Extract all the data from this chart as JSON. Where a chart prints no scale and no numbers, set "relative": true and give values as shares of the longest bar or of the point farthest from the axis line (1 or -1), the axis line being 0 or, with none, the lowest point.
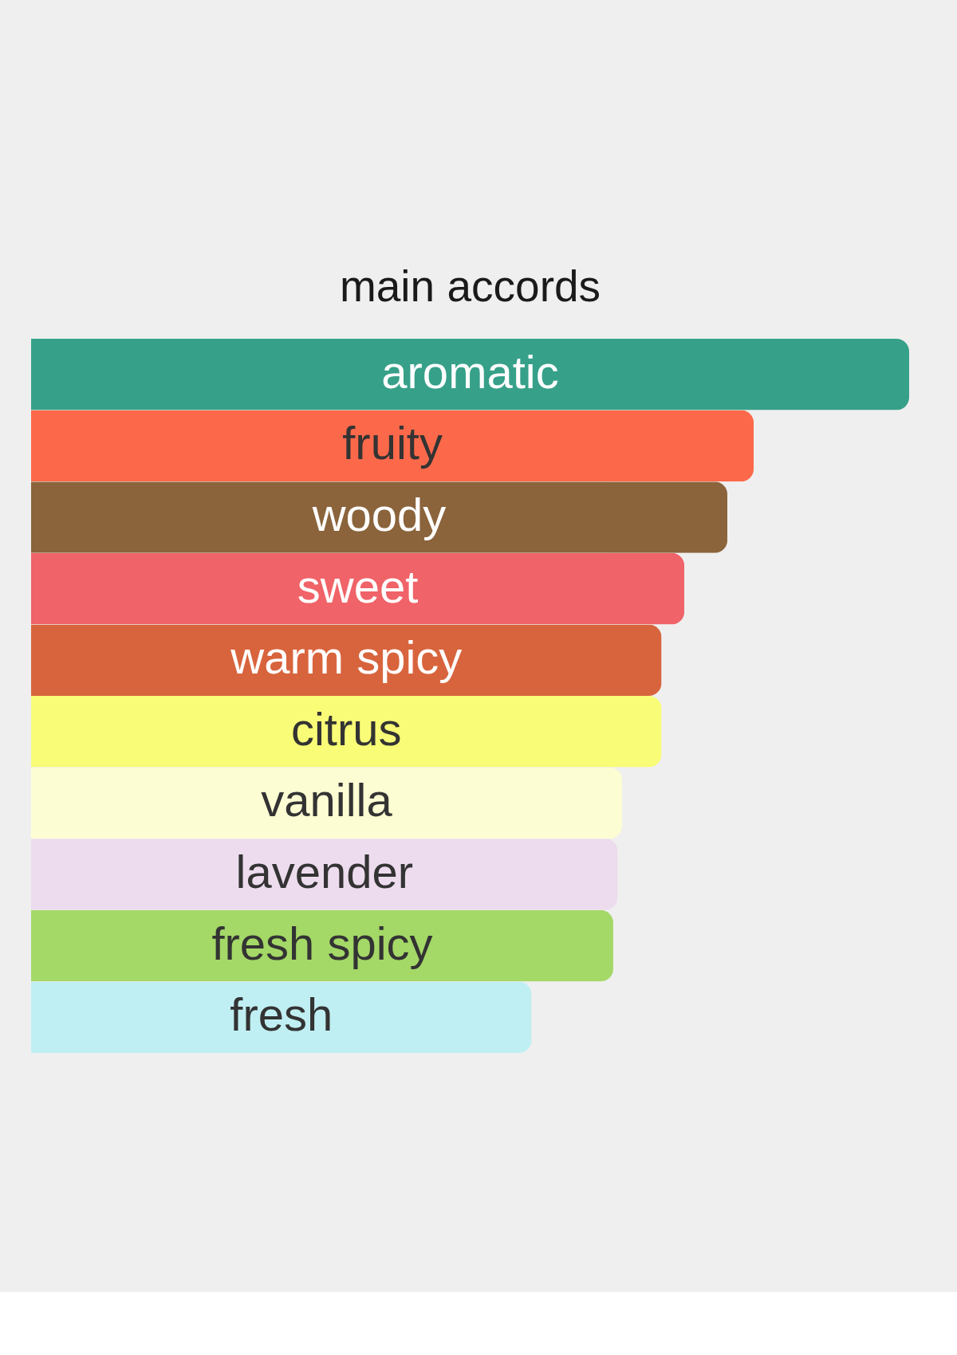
{
  "chart_data": {
    "type": "bar",
    "orientation": "horizontal",
    "relative": true,
    "title": "main accords",
    "categories": [
      "aromatic",
      "fruity",
      "woody",
      "sweet",
      "warm spicy",
      "citrus",
      "vanilla",
      "lavender",
      "fresh spicy",
      "fresh"
    ],
    "values": [
      1,
      0.823,
      0.793,
      0.744,
      0.718,
      0.718,
      0.673,
      0.668,
      0.663,
      0.57
    ],
    "colors": [
      "#37a089",
      "#fc694a",
      "#8b643c",
      "#f06368",
      "#d8643d",
      "#f9fc76",
      "#fdfdd3",
      "#eddcee",
      "#a4d867",
      "#c0eff3"
    ]
  }
}
